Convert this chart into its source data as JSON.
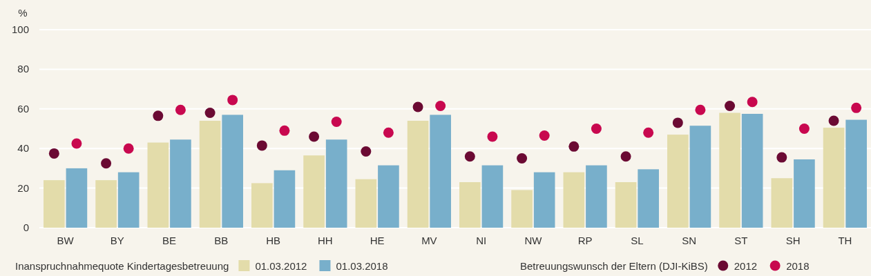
{
  "chart_data": {
    "type": "bar",
    "ylabel": "%",
    "categories": [
      "BW",
      "BY",
      "BE",
      "BB",
      "HB",
      "HH",
      "HE",
      "MV",
      "NI",
      "NW",
      "RP",
      "SL",
      "SN",
      "ST",
      "SH",
      "TH"
    ],
    "series": [
      {
        "name": "01.03.2012",
        "color": "#e3dcaa",
        "values": [
          24,
          24,
          43,
          54,
          22.5,
          36.5,
          24.5,
          54,
          23,
          19,
          28,
          23,
          47,
          58,
          25,
          50.5
        ]
      },
      {
        "name": "01.03.2018",
        "color": "#78afcb",
        "values": [
          30,
          28,
          44.5,
          57,
          29,
          44.5,
          31.5,
          57,
          31.5,
          28,
          31.5,
          29.5,
          51.5,
          57.5,
          34.5,
          54.5
        ]
      },
      {
        "name": "2012",
        "type": "scatter",
        "color": "#6b0a33",
        "x": [
          "BW",
          "BY",
          "BE",
          "BB",
          "HB",
          "HH",
          "HE",
          "MV",
          "NI",
          "NW",
          "RP",
          "SL",
          "SN",
          "ST",
          "SH",
          "TH"
        ],
        "values": [
          37.5,
          32.5,
          56.5,
          58,
          41.5,
          46,
          38.5,
          61,
          36,
          35,
          41,
          36,
          53,
          61.5,
          35.5,
          54
        ]
      },
      {
        "name": "2018",
        "type": "scatter",
        "color": "#c8084f",
        "x": [
          "BW",
          "BY",
          "BE",
          "BB",
          "HB",
          "HH",
          "HE",
          "MV",
          "NI",
          "NW",
          "RP",
          "SL",
          "SN",
          "ST",
          "SH",
          "TH"
        ],
        "values": [
          42.5,
          40,
          59.5,
          64.5,
          49,
          53.5,
          48,
          61.5,
          46,
          46.5,
          50,
          48,
          59.5,
          63.5,
          50,
          60.5
        ]
      }
    ],
    "ylim": [
      0,
      100
    ],
    "yticks": [
      0,
      20,
      40,
      60,
      80,
      100
    ],
    "grid": "y",
    "legend": "bottom",
    "marker": "circle",
    "annotations": [
      "Inanspruchnahmequote Kindertagesbetreuung",
      "Betreuungswunsch der Eltern (DJI-KiBS)"
    ]
  }
}
